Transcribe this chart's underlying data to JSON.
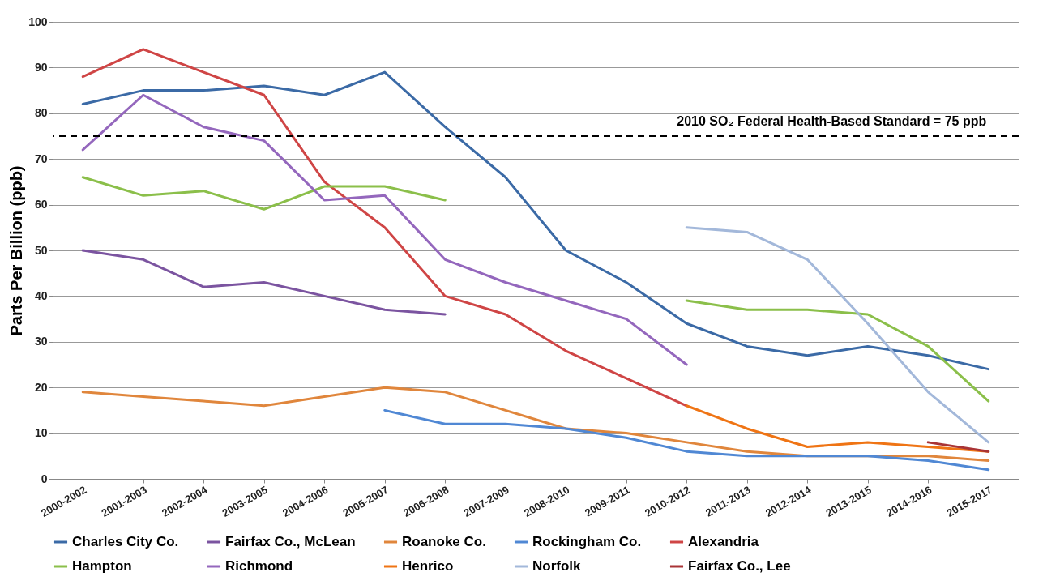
{
  "chart_data": {
    "type": "line",
    "ylabel": "Parts Per Billion (ppb)",
    "categories": [
      "2000-2002",
      "2001-2003",
      "2002-2004",
      "2003-2005",
      "2004-2006",
      "2005-2007",
      "2006-2008",
      "2007-2009",
      "2008-2010",
      "2009-2011",
      "2010-2012",
      "2011-2013",
      "2012-2014",
      "2013-2015",
      "2014-2016",
      "2015-2017"
    ],
    "series": [
      {
        "name": "Charles City Co.",
        "color": "#3b6aa6",
        "values": [
          82,
          85,
          85,
          86,
          84,
          89,
          77,
          66,
          50,
          43,
          34,
          29,
          27,
          29,
          27,
          24
        ]
      },
      {
        "name": "Fairfax Co., McLean",
        "color": "#7b54a0",
        "values": [
          50,
          48,
          42,
          43,
          40,
          37,
          36,
          null,
          null,
          null,
          null,
          null,
          null,
          null,
          null,
          null
        ]
      },
      {
        "name": "Roanoke Co.",
        "color": "#e0863c",
        "values": [
          19,
          18,
          17,
          16,
          18,
          20,
          19,
          15,
          11,
          10,
          8,
          6,
          5,
          5,
          5,
          4
        ]
      },
      {
        "name": "Rockingham Co.",
        "color": "#5088d4",
        "values": [
          null,
          null,
          null,
          null,
          null,
          15,
          12,
          12,
          11,
          9,
          6,
          5,
          5,
          5,
          4,
          2
        ]
      },
      {
        "name": "Alexandria",
        "color": "#cf4545",
        "values": [
          88,
          94,
          89,
          84,
          65,
          55,
          40,
          36,
          28,
          22,
          16,
          null,
          null,
          null,
          null,
          null
        ]
      },
      {
        "name": "Hampton",
        "color": "#8bbf4a",
        "values": [
          66,
          62,
          63,
          59,
          64,
          64,
          61,
          null,
          null,
          null,
          39,
          37,
          37,
          36,
          29,
          17
        ]
      },
      {
        "name": "Richmond",
        "color": "#9467bd",
        "values": [
          72,
          84,
          77,
          74,
          61,
          62,
          48,
          43,
          39,
          35,
          25,
          null,
          null,
          null,
          null,
          null
        ]
      },
      {
        "name": "Henrico",
        "color": "#ef7414",
        "values": [
          null,
          null,
          null,
          null,
          null,
          null,
          null,
          null,
          null,
          null,
          16,
          11,
          7,
          8,
          7,
          6
        ]
      },
      {
        "name": "Norfolk",
        "color": "#a3b8da",
        "values": [
          null,
          null,
          null,
          null,
          null,
          null,
          null,
          null,
          null,
          null,
          55,
          54,
          48,
          34,
          19,
          8
        ]
      },
      {
        "name": "Fairfax Co., Lee",
        "color": "#a93436",
        "values": [
          null,
          null,
          null,
          null,
          null,
          null,
          null,
          null,
          null,
          null,
          null,
          null,
          null,
          null,
          8,
          6
        ]
      }
    ],
    "ylim": [
      0,
      100
    ],
    "yticks": [
      0,
      10,
      20,
      30,
      40,
      50,
      60,
      70,
      80,
      90,
      100
    ],
    "grid": "y",
    "legend": "bottom",
    "line_style": "solid",
    "ref_lines": [
      {
        "axis": "y",
        "value": 75,
        "label": "2010 SO₂ Federal Health-Based Standard = 75  ppb",
        "line_style": "dashed",
        "color": "#000000"
      }
    ]
  }
}
